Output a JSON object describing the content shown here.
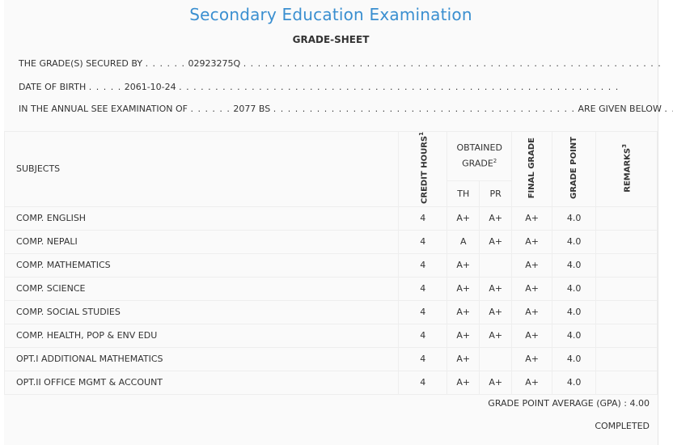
{
  "title": "Secondary Education Examination",
  "subtitle": "GRADE-SHEET",
  "lines": {
    "secured_prefix": "THE GRADE(S) SECURED BY",
    "symbol_no": "02923275Q",
    "dob_prefix": "DATE OF BIRTH",
    "dob": "2061-10-24",
    "exam_prefix": "IN THE ANNUAL SEE EXAMINATION OF",
    "exam_year": "2077 BS",
    "exam_suffix": "ARE GIVEN BELOW",
    "dots_short": ". . . . . .",
    "dots_dob": ". . . . .",
    "dots_long1": ". . . . . . . . . . . . . . . . . . . . . . . . . . . . . . . . . . . . . . . . . . . . . . . . . . . . . . . . . .",
    "dots_long2": ". . . . . . . . . . . . . . . . . . . . . . . . . . . . . . . . . . . . . . . . . . . . . . . . . . . . . . . . . . . . .",
    "dots_long3": ". . . . . . . . . . . . . . . . . . . . . . . . . . . . . . . . . . . . . . . . . .",
    "dots_end": ". . ."
  },
  "table": {
    "headers": {
      "subjects": "SUBJECTS",
      "credit": "CREDIT HOURS",
      "credit_sup": "1",
      "obtained": "OBTAINED GRADE",
      "obtained_sup": "2",
      "th": "TH",
      "pr": "PR",
      "final": "FINAL GRADE",
      "gp": "GRADE POINT",
      "remarks": "REMARKS",
      "remarks_sup": "3"
    },
    "rows": [
      {
        "subject": "COMP. ENGLISH",
        "credit": "4",
        "th": "A+",
        "pr": "A+",
        "final": "A+",
        "gp": "4.0",
        "remarks": ""
      },
      {
        "subject": "COMP. NEPALI",
        "credit": "4",
        "th": "A",
        "pr": "A+",
        "final": "A+",
        "gp": "4.0",
        "remarks": ""
      },
      {
        "subject": "COMP. MATHEMATICS",
        "credit": "4",
        "th": "A+",
        "pr": "",
        "final": "A+",
        "gp": "4.0",
        "remarks": ""
      },
      {
        "subject": "COMP. SCIENCE",
        "credit": "4",
        "th": "A+",
        "pr": "A+",
        "final": "A+",
        "gp": "4.0",
        "remarks": ""
      },
      {
        "subject": "COMP. SOCIAL STUDIES",
        "credit": "4",
        "th": "A+",
        "pr": "A+",
        "final": "A+",
        "gp": "4.0",
        "remarks": ""
      },
      {
        "subject": "COMP. HEALTH, POP & ENV EDU",
        "credit": "4",
        "th": "A+",
        "pr": "A+",
        "final": "A+",
        "gp": "4.0",
        "remarks": ""
      },
      {
        "subject": "OPT.I ADDITIONAL MATHEMATICS",
        "credit": "4",
        "th": "A+",
        "pr": "",
        "final": "A+",
        "gp": "4.0",
        "remarks": ""
      },
      {
        "subject": "OPT.II OFFICE MGMT & ACCOUNT",
        "credit": "4",
        "th": "A+",
        "pr": "A+",
        "final": "A+",
        "gp": "4.0",
        "remarks": ""
      }
    ]
  },
  "summary": {
    "gpa": "GRADE POINT AVERAGE (GPA) : 4.00",
    "status": "COMPLETED"
  }
}
